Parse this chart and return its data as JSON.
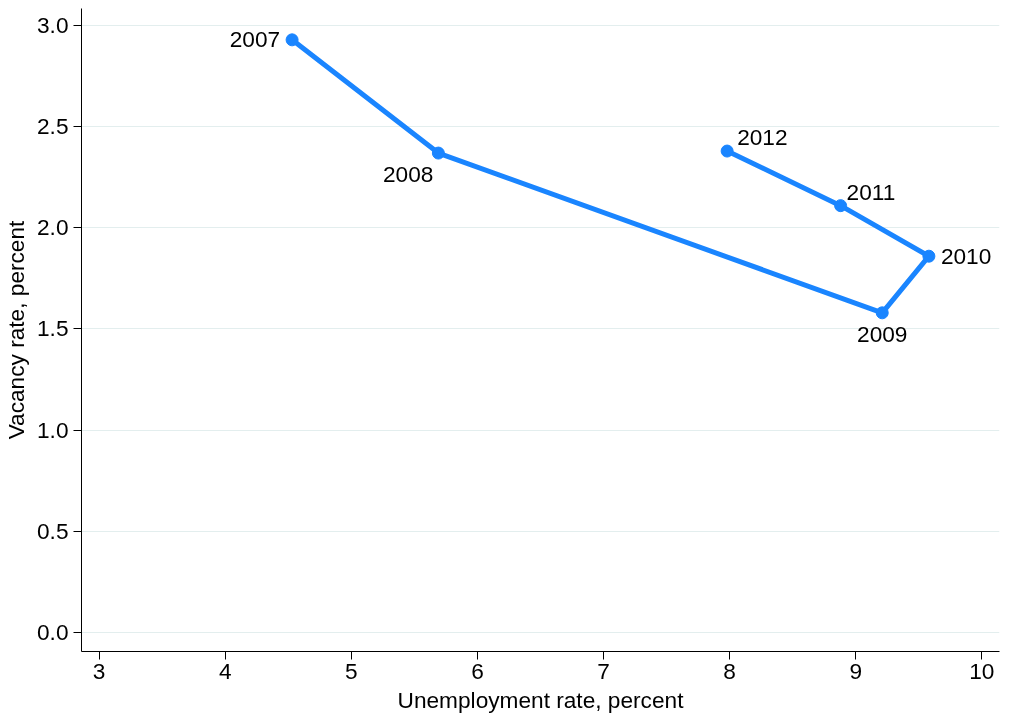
{
  "chart_data": {
    "type": "line",
    "xlabel": "Unemployment rate, percent",
    "ylabel": "Vacancy rate, percent",
    "x": [
      4.53,
      5.69,
      9.21,
      9.58,
      8.88,
      7.98
    ],
    "series": [
      {
        "color": "#1a85ff",
        "values": [
          2.93,
          2.37,
          1.58,
          1.86,
          2.11,
          2.38
        ]
      }
    ],
    "annotations": [
      {
        "text": "2007",
        "x": 4.53,
        "y": 2.93
      },
      {
        "text": "2008",
        "x": 5.69,
        "y": 2.37
      },
      {
        "text": "2009",
        "x": 9.21,
        "y": 1.58
      },
      {
        "text": "2010",
        "x": 9.58,
        "y": 1.86
      },
      {
        "text": "2011",
        "x": 8.88,
        "y": 2.11
      },
      {
        "text": "2012",
        "x": 7.98,
        "y": 2.38
      }
    ],
    "xlim": [
      2.86,
      10.14
    ],
    "ylim": [
      -0.095,
      3.085
    ],
    "xticks": [
      3,
      4,
      5,
      6,
      7,
      8,
      9,
      10
    ],
    "yticks": [
      {
        "value": 0,
        "label": "0.0"
      },
      {
        "value": 0.5,
        "label": "0.5"
      },
      {
        "value": 1,
        "label": "1.0"
      },
      {
        "value": 1.5,
        "label": "1.5"
      },
      {
        "value": 2,
        "label": "2.0"
      },
      {
        "value": 2.5,
        "label": "2.5"
      },
      {
        "value": 3,
        "label": "3.0"
      }
    ],
    "grid": "y",
    "marker": "circle",
    "line_style": "solid"
  }
}
